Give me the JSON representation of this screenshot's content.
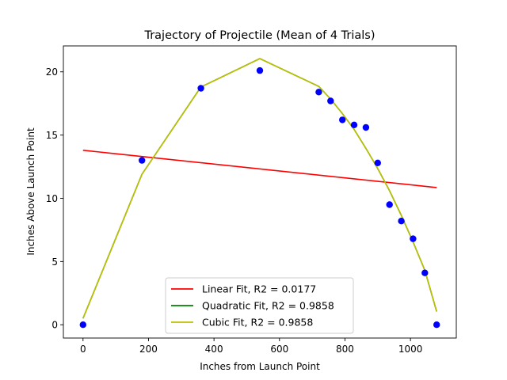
{
  "chart_data": {
    "type": "scatter",
    "title": "Trajectory of Projectile (Mean of 4 Trials)",
    "xlabel": "Inches from Launch Point",
    "ylabel": "Inches Above Launch Point",
    "xlim": [
      -60,
      1140
    ],
    "ylim": [
      -1.05,
      22.05
    ],
    "xticks": [
      0,
      200,
      400,
      600,
      800,
      1000
    ],
    "yticks": [
      0,
      5,
      10,
      15,
      20
    ],
    "legend_position": "lower center",
    "points": {
      "color": "#0000ff",
      "x": [
        0,
        180,
        360,
        540,
        720,
        756,
        792,
        828,
        864,
        900,
        936,
        972,
        1008,
        1044,
        1080
      ],
      "y": [
        0.0,
        13.0,
        18.7,
        20.1,
        18.4,
        17.7,
        16.2,
        15.8,
        15.6,
        12.8,
        9.5,
        8.2,
        6.8,
        4.1,
        0.0
      ]
    },
    "series": [
      {
        "name": "Linear Fit, R2 = 0.0177",
        "color": "#ff0000",
        "x": [
          0,
          1080
        ],
        "y": [
          13.8,
          10.85
        ]
      },
      {
        "name": "Quadratic Fit, R2 = 0.9858",
        "color": "#008000",
        "x": [
          0,
          180,
          360,
          540,
          720,
          756,
          792,
          828,
          864,
          900,
          936,
          972,
          1008,
          1044,
          1080
        ],
        "y": [
          0.5,
          11.9,
          18.8,
          21.05,
          18.85,
          17.85,
          16.7,
          15.45,
          13.95,
          12.35,
          10.6,
          8.65,
          6.55,
          4.3,
          1.05
        ]
      },
      {
        "name": "Cubic Fit, R2 = 0.9858",
        "color": "#bfbf00",
        "x": [
          0,
          180,
          360,
          540,
          720,
          756,
          792,
          828,
          864,
          900,
          936,
          972,
          1008,
          1044,
          1080
        ],
        "y": [
          0.5,
          11.9,
          18.8,
          21.05,
          18.85,
          17.85,
          16.7,
          15.45,
          13.95,
          12.35,
          10.6,
          8.65,
          6.55,
          4.3,
          1.05
        ]
      }
    ]
  }
}
